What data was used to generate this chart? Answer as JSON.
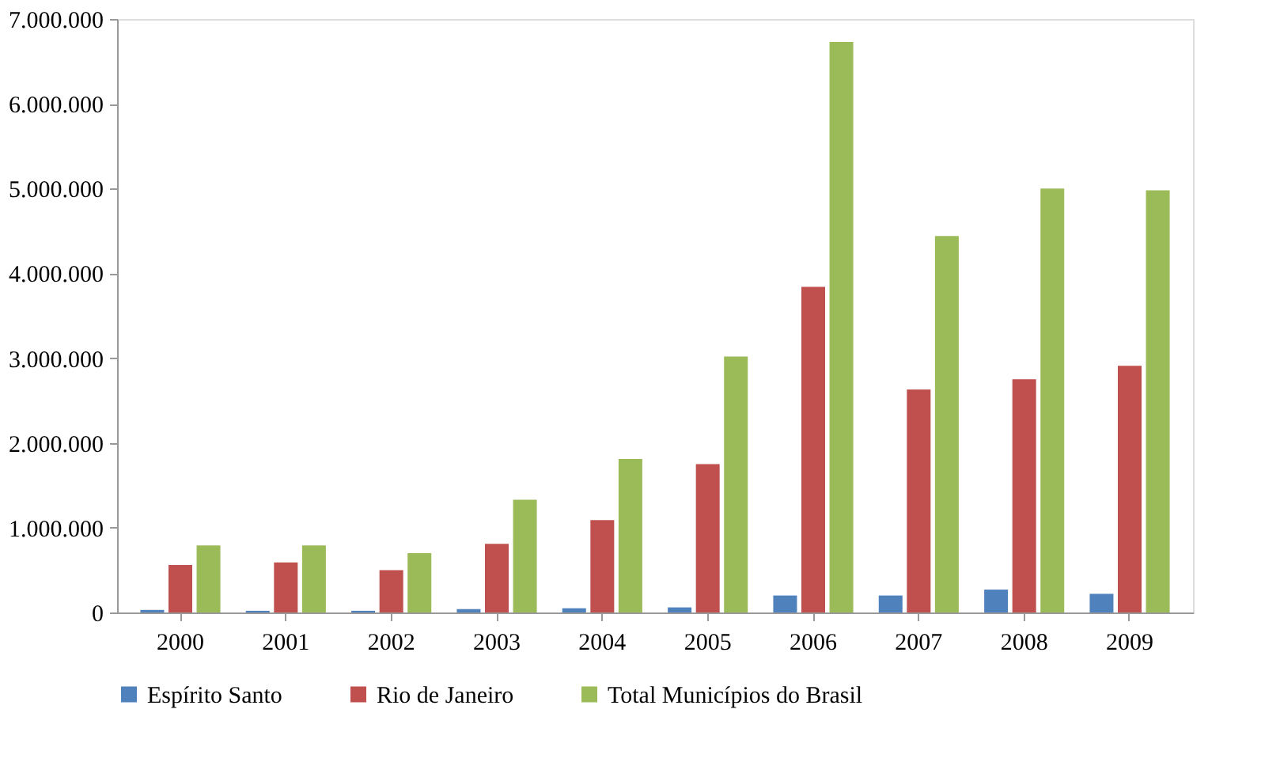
{
  "chart_data": {
    "type": "bar",
    "categories": [
      "2000",
      "2001",
      "2002",
      "2003",
      "2004",
      "2005",
      "2006",
      "2007",
      "2008",
      "2009"
    ],
    "series": [
      {
        "name": "Espírito Santo",
        "color": "#4f81bd",
        "values": [
          30000,
          20000,
          20000,
          40000,
          50000,
          60000,
          200000,
          200000,
          270000,
          220000
        ]
      },
      {
        "name": "Rio de Janeiro",
        "color": "#c0504d",
        "values": [
          560000,
          590000,
          500000,
          810000,
          1090000,
          1750000,
          3840000,
          2630000,
          2750000,
          2910000
        ]
      },
      {
        "name": "Total Municípios do Brasil",
        "color": "#9bbb59",
        "values": [
          790000,
          790000,
          700000,
          1330000,
          1810000,
          3020000,
          6730000,
          4440000,
          5000000,
          4980000
        ]
      }
    ],
    "ylim": [
      0,
      7000000
    ],
    "yticks": [
      0,
      {
        "value": 1000000,
        "label": "1.000.000"
      },
      {
        "value": 2000000,
        "label": "2.000.000"
      },
      {
        "value": 3000000,
        "label": "3.000.000"
      },
      {
        "value": 4000000,
        "label": "4.000.000"
      },
      {
        "value": 5000000,
        "label": "5.000.000"
      },
      {
        "value": 6000000,
        "label": "6.000.000"
      },
      {
        "value": 7000000,
        "label": "7.000.000"
      }
    ],
    "grid": false,
    "legend": "bottom"
  }
}
